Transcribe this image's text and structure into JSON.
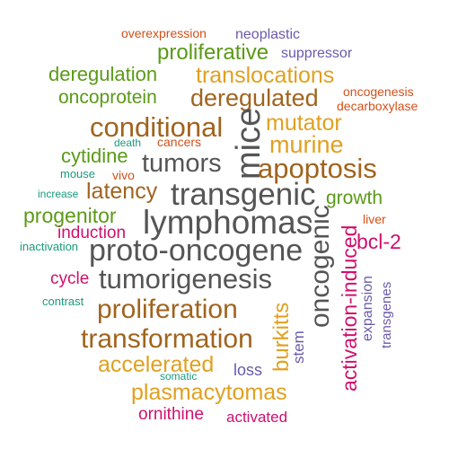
{
  "palette": {
    "gray": "#555555",
    "brown": "#a0641e",
    "orange": "#e0a020",
    "green": "#5a9a18",
    "magenta": "#d0106e",
    "purple": "#6a5aac",
    "teal": "#1a9a7a",
    "red_orange": "#d4501a"
  },
  "words": [
    {
      "text": "overexpression",
      "color": "red_orange"
    },
    {
      "text": "neoplastic",
      "color": "purple"
    },
    {
      "text": "proliferative",
      "color": "green"
    },
    {
      "text": "suppressor",
      "color": "purple"
    },
    {
      "text": "deregulation",
      "color": "green"
    },
    {
      "text": "translocations",
      "color": "orange"
    },
    {
      "text": "oncoprotein",
      "color": "green"
    },
    {
      "text": "deregulated",
      "color": "brown"
    },
    {
      "text": "oncogenesis",
      "color": "red_orange"
    },
    {
      "text": "decarboxylase",
      "color": "red_orange"
    },
    {
      "text": "conditional",
      "color": "brown"
    },
    {
      "text": "mutator",
      "color": "orange"
    },
    {
      "text": "mice",
      "color": "gray"
    },
    {
      "text": "murine",
      "color": "orange"
    },
    {
      "text": "death",
      "color": "teal"
    },
    {
      "text": "cancers",
      "color": "red_orange"
    },
    {
      "text": "cytidine",
      "color": "green"
    },
    {
      "text": "tumors",
      "color": "gray"
    },
    {
      "text": "apoptosis",
      "color": "brown"
    },
    {
      "text": "mouse",
      "color": "teal"
    },
    {
      "text": "vivo",
      "color": "red_orange"
    },
    {
      "text": "latency",
      "color": "brown"
    },
    {
      "text": "transgenic",
      "color": "gray"
    },
    {
      "text": "increase",
      "color": "teal"
    },
    {
      "text": "growth",
      "color": "green"
    },
    {
      "text": "progenitor",
      "color": "green"
    },
    {
      "text": "lymphomas",
      "color": "gray"
    },
    {
      "text": "oncogenic",
      "color": "gray"
    },
    {
      "text": "liver",
      "color": "red_orange"
    },
    {
      "text": "induction",
      "color": "magenta"
    },
    {
      "text": "inactivation",
      "color": "teal"
    },
    {
      "text": "proto-oncogene",
      "color": "gray"
    },
    {
      "text": "bcl-2",
      "color": "magenta"
    },
    {
      "text": "cycle",
      "color": "magenta"
    },
    {
      "text": "tumorigenesis",
      "color": "gray"
    },
    {
      "text": "activation-induced",
      "color": "magenta"
    },
    {
      "text": "expansion",
      "color": "purple"
    },
    {
      "text": "contrast",
      "color": "teal"
    },
    {
      "text": "proliferation",
      "color": "brown"
    },
    {
      "text": "burkitts",
      "color": "orange"
    },
    {
      "text": "stem",
      "color": "purple"
    },
    {
      "text": "transgenes",
      "color": "purple"
    },
    {
      "text": "transformation",
      "color": "brown"
    },
    {
      "text": "accelerated",
      "color": "orange"
    },
    {
      "text": "loss",
      "color": "purple"
    },
    {
      "text": "somatic",
      "color": "teal"
    },
    {
      "text": "plasmacytomas",
      "color": "orange"
    },
    {
      "text": "ornithine",
      "color": "magenta"
    },
    {
      "text": "activated",
      "color": "magenta"
    }
  ]
}
